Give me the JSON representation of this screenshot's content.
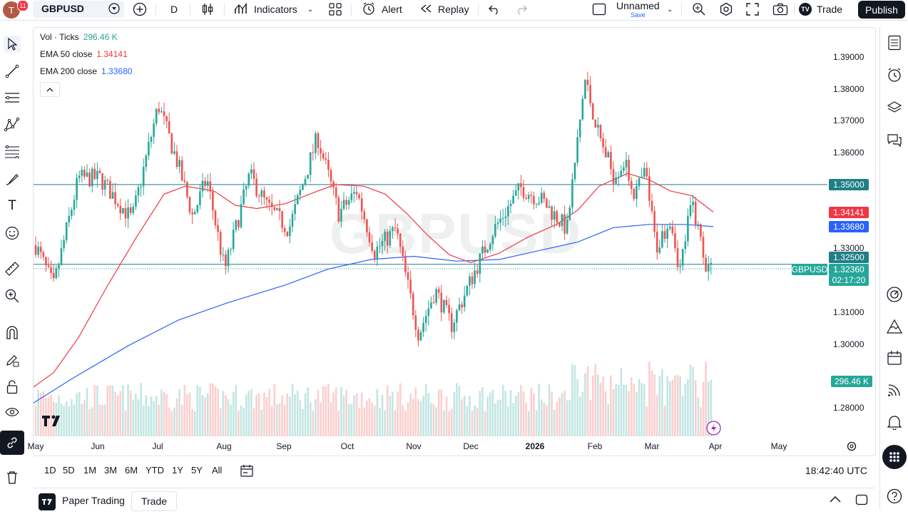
{
  "header": {
    "avatar_letter": "T",
    "notifications": "11",
    "symbol": "GBPUSD",
    "interval": "D",
    "indicators_label": "Indicators",
    "alert_label": "Alert",
    "replay_label": "Replay",
    "layout_name": "Unnamed",
    "layout_status": "Save",
    "trade_label": "Trade",
    "publish_label": "Publish"
  },
  "legend": {
    "volume": {
      "label": "Vol · Ticks",
      "value": "296.46 K"
    },
    "ema50": {
      "label": "EMA 50 close",
      "value": "1.34141"
    },
    "ema200": {
      "label": "EMA 200 close",
      "value": "1.33680"
    }
  },
  "watermark": "GBPUSD",
  "price_axis": {
    "ticks": [
      "1.39000",
      "1.38000",
      "1.37000",
      "1.36000",
      "1.33000",
      "1.31000",
      "1.30000",
      "1.28000"
    ],
    "ticks_values": [
      1.39,
      1.38,
      1.37,
      1.36,
      1.33,
      1.31,
      1.3,
      1.28
    ],
    "level_1": "1.35000",
    "ema50_tag": "1.34141",
    "ema200_tag": "1.33680",
    "level_2": "1.32500",
    "symbol_tag": "GBPUSD",
    "last_price": "1.32360",
    "countdown": "02:17:20",
    "volume_tag": "296.46 K"
  },
  "time_axis": {
    "labels": [
      "May",
      "Jun",
      "Jul",
      "Aug",
      "Sep",
      "Oct",
      "Nov",
      "Dec",
      "2026",
      "Feb",
      "Mar",
      "Apr",
      "May"
    ]
  },
  "ranges": [
    "1D",
    "5D",
    "1M",
    "3M",
    "6M",
    "YTD",
    "1Y",
    "5Y",
    "All"
  ],
  "clock": "18:42:40 UTC",
  "status_bar": {
    "paper_trading": "Paper Trading",
    "trade": "Trade"
  },
  "colors": {
    "up": "#26a69a",
    "down": "#ef5350",
    "ema50": "#f23645",
    "ema200": "#2962ff",
    "level": "#1e7f86",
    "accent": "#131722"
  },
  "chart_data": {
    "type": "candlestick",
    "symbol": "GBPUSD",
    "interval": "D",
    "ylim": [
      1.27,
      1.395
    ],
    "horizontal_levels": [
      1.35,
      1.325
    ],
    "last_price": 1.3236,
    "ema50_last": 1.34141,
    "ema200_last": 1.3368,
    "volume_last_ticks": "296.46 K"
  }
}
